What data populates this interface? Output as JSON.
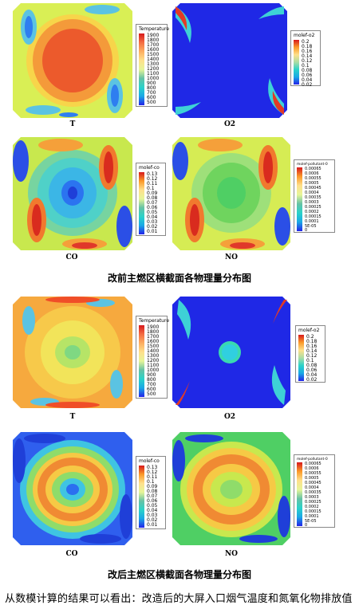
{
  "figure_before": {
    "caption": "改前主燃区横截面各物理量分布图",
    "panels": [
      {
        "label": "T",
        "legend_title": "Temperature",
        "legend_values": [
          "1900",
          "1800",
          "1700",
          "1600",
          "1500",
          "1400",
          "1300",
          "1200",
          "1100",
          "1000",
          "900",
          "800",
          "700",
          "600",
          "500"
        ]
      },
      {
        "label": "O2",
        "legend_title": "molef-o2",
        "legend_values": [
          "0.2",
          "0.18",
          "0.16",
          "0.14",
          "0.12",
          "0.1",
          "0.08",
          "0.06",
          "0.04",
          "0.02"
        ]
      },
      {
        "label": "CO",
        "legend_title": "molef-co",
        "legend_values": [
          "0.13",
          "0.12",
          "0.11",
          "0.1",
          "0.09",
          "0.08",
          "0.07",
          "0.06",
          "0.05",
          "0.04",
          "0.03",
          "0.02",
          "0.01"
        ]
      },
      {
        "label": "NO",
        "legend_title": "molef-pollutant-0",
        "legend_values": [
          "0.00065",
          "0.0006",
          "0.00055",
          "0.0005",
          "0.00045",
          "0.0004",
          "0.00035",
          "0.0003",
          "0.00025",
          "0.0002",
          "0.00015",
          "0.0001",
          "5E-05",
          "0"
        ]
      }
    ]
  },
  "figure_after": {
    "caption": "改后主燃区横截面各物理量分布图",
    "panels": [
      {
        "label": "T",
        "legend_title": "Temperature",
        "legend_values": [
          "1900",
          "1800",
          "1700",
          "1600",
          "1500",
          "1400",
          "1300",
          "1200",
          "1100",
          "1000",
          "900",
          "800",
          "700",
          "600",
          "500"
        ]
      },
      {
        "label": "O2",
        "legend_title": "molef-o2",
        "legend_values": [
          "0.2",
          "0.18",
          "0.16",
          "0.14",
          "0.12",
          "0.1",
          "0.08",
          "0.06",
          "0.04",
          "0.02"
        ]
      },
      {
        "label": "CO",
        "legend_title": "molef-co",
        "legend_values": [
          "0.13",
          "0.12",
          "0.11",
          "0.1",
          "0.09",
          "0.08",
          "0.07",
          "0.06",
          "0.05",
          "0.04",
          "0.03",
          "0.02",
          "0.01"
        ]
      },
      {
        "label": "NO",
        "legend_title": "molef-pollutant-0",
        "legend_values": [
          "0.00065",
          "0.0006",
          "0.00055",
          "0.0005",
          "0.00045",
          "0.0004",
          "0.00035",
          "0.0003",
          "0.00025",
          "0.0002",
          "0.00015",
          "0.0001",
          "5E-05",
          "0"
        ]
      }
    ]
  },
  "body_text": "从数模计算的结果可以看出：改造后的大屏入口烟气温度和氮氧化物排放值",
  "colors": {
    "scale": [
      "#d7191c",
      "#ef3b2c",
      "#f46d43",
      "#fb9a29",
      "#fdae61",
      "#fee08b",
      "#e6f598",
      "#abdda4",
      "#66c2a5",
      "#3bd16f",
      "#2bd2c9",
      "#1aa8e6",
      "#1e6ff0",
      "#2323e8"
    ]
  }
}
